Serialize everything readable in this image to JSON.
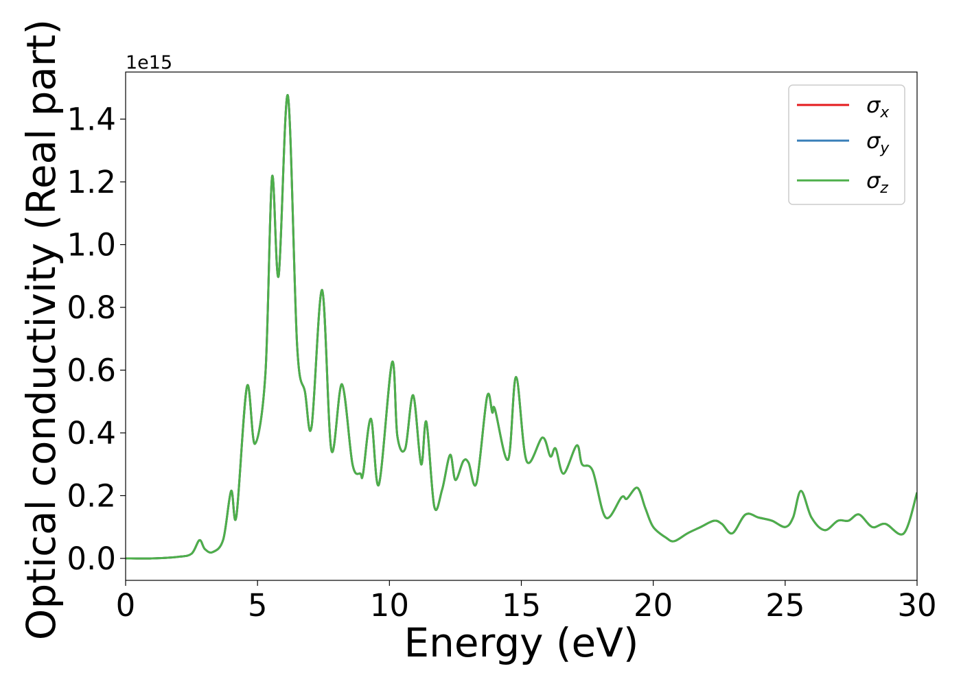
{
  "chart_data": {
    "type": "line",
    "title": "",
    "xlabel": "Energy (eV)",
    "ylabel": "Optical conductivity (Real part)",
    "y_offset_label": "1e15",
    "xlim": [
      0,
      30
    ],
    "ylim": [
      -0.07,
      1.55
    ],
    "x_ticks": [
      0,
      5,
      10,
      15,
      20,
      25,
      30
    ],
    "x_tick_labels": [
      "0",
      "5",
      "10",
      "15",
      "20",
      "25",
      "30"
    ],
    "y_ticks": [
      0.0,
      0.2,
      0.4,
      0.6,
      0.8,
      1.0,
      1.2,
      1.4
    ],
    "y_tick_labels": [
      "0.0",
      "0.2",
      "0.4",
      "0.6",
      "0.8",
      "1.0",
      "1.2",
      "1.4"
    ],
    "grid": false,
    "legend_position": "top-right",
    "x": [
      0.0,
      1.0,
      2.0,
      2.5,
      2.8,
      3.0,
      3.3,
      3.7,
      4.0,
      4.2,
      4.6,
      4.9,
      5.3,
      5.55,
      5.8,
      6.15,
      6.5,
      6.8,
      7.05,
      7.45,
      7.8,
      8.2,
      8.6,
      8.9,
      9.0,
      9.3,
      9.6,
      10.1,
      10.3,
      10.6,
      10.9,
      11.2,
      11.4,
      11.7,
      12.0,
      12.3,
      12.5,
      12.8,
      13.0,
      13.3,
      13.7,
      13.9,
      14.0,
      14.5,
      14.8,
      15.2,
      15.8,
      16.1,
      16.3,
      16.6,
      17.1,
      17.3,
      17.7,
      18.2,
      18.8,
      19.0,
      19.4,
      19.7,
      20.0,
      20.5,
      20.8,
      21.3,
      21.8,
      22.3,
      22.6,
      23.0,
      23.5,
      24.0,
      24.5,
      25.0,
      25.3,
      25.6,
      26.0,
      26.5,
      27.0,
      27.4,
      27.8,
      28.3,
      28.8,
      29.5,
      30.0
    ],
    "series": [
      {
        "name": "σx",
        "color": "#e41a1c",
        "values": [
          0.0,
          0.0,
          0.005,
          0.015,
          0.058,
          0.03,
          0.02,
          0.06,
          0.215,
          0.135,
          0.548,
          0.365,
          0.59,
          1.215,
          0.9,
          1.475,
          0.68,
          0.53,
          0.42,
          0.855,
          0.345,
          0.555,
          0.3,
          0.27,
          0.27,
          0.445,
          0.235,
          0.625,
          0.39,
          0.35,
          0.52,
          0.3,
          0.435,
          0.165,
          0.22,
          0.33,
          0.25,
          0.31,
          0.305,
          0.24,
          0.515,
          0.465,
          0.475,
          0.315,
          0.578,
          0.31,
          0.385,
          0.325,
          0.35,
          0.27,
          0.36,
          0.3,
          0.28,
          0.13,
          0.195,
          0.19,
          0.225,
          0.16,
          0.1,
          0.065,
          0.055,
          0.08,
          0.1,
          0.12,
          0.11,
          0.08,
          0.14,
          0.13,
          0.12,
          0.1,
          0.13,
          0.215,
          0.13,
          0.09,
          0.12,
          0.12,
          0.14,
          0.1,
          0.11,
          0.08,
          0.21
        ]
      },
      {
        "name": "σy",
        "color": "#377eb8",
        "values": [
          0.0,
          0.0,
          0.005,
          0.015,
          0.058,
          0.03,
          0.02,
          0.06,
          0.215,
          0.135,
          0.548,
          0.365,
          0.59,
          1.215,
          0.9,
          1.475,
          0.68,
          0.53,
          0.42,
          0.855,
          0.345,
          0.555,
          0.3,
          0.27,
          0.27,
          0.445,
          0.235,
          0.625,
          0.39,
          0.35,
          0.52,
          0.3,
          0.435,
          0.165,
          0.22,
          0.33,
          0.25,
          0.31,
          0.305,
          0.24,
          0.515,
          0.465,
          0.475,
          0.315,
          0.578,
          0.31,
          0.385,
          0.325,
          0.35,
          0.27,
          0.36,
          0.3,
          0.28,
          0.13,
          0.195,
          0.19,
          0.225,
          0.16,
          0.1,
          0.065,
          0.055,
          0.08,
          0.1,
          0.12,
          0.11,
          0.08,
          0.14,
          0.13,
          0.12,
          0.1,
          0.13,
          0.215,
          0.13,
          0.09,
          0.12,
          0.12,
          0.14,
          0.1,
          0.11,
          0.08,
          0.21
        ]
      },
      {
        "name": "σz",
        "color": "#4daf4a",
        "values": [
          0.0,
          0.0,
          0.005,
          0.015,
          0.058,
          0.03,
          0.02,
          0.06,
          0.215,
          0.135,
          0.548,
          0.365,
          0.59,
          1.215,
          0.9,
          1.475,
          0.68,
          0.53,
          0.42,
          0.855,
          0.345,
          0.555,
          0.3,
          0.27,
          0.27,
          0.445,
          0.235,
          0.625,
          0.39,
          0.35,
          0.52,
          0.3,
          0.435,
          0.165,
          0.22,
          0.33,
          0.25,
          0.31,
          0.305,
          0.24,
          0.515,
          0.465,
          0.475,
          0.315,
          0.578,
          0.31,
          0.385,
          0.325,
          0.35,
          0.27,
          0.36,
          0.3,
          0.28,
          0.13,
          0.195,
          0.19,
          0.225,
          0.16,
          0.1,
          0.065,
          0.055,
          0.08,
          0.1,
          0.12,
          0.11,
          0.08,
          0.14,
          0.13,
          0.12,
          0.1,
          0.13,
          0.215,
          0.13,
          0.09,
          0.12,
          0.12,
          0.14,
          0.1,
          0.11,
          0.08,
          0.21
        ]
      }
    ],
    "legend": [
      {
        "symbol": "σ",
        "sub": "x",
        "color": "#e41a1c"
      },
      {
        "symbol": "σ",
        "sub": "y",
        "color": "#377eb8"
      },
      {
        "symbol": "σ",
        "sub": "z",
        "color": "#4daf4a"
      }
    ]
  }
}
